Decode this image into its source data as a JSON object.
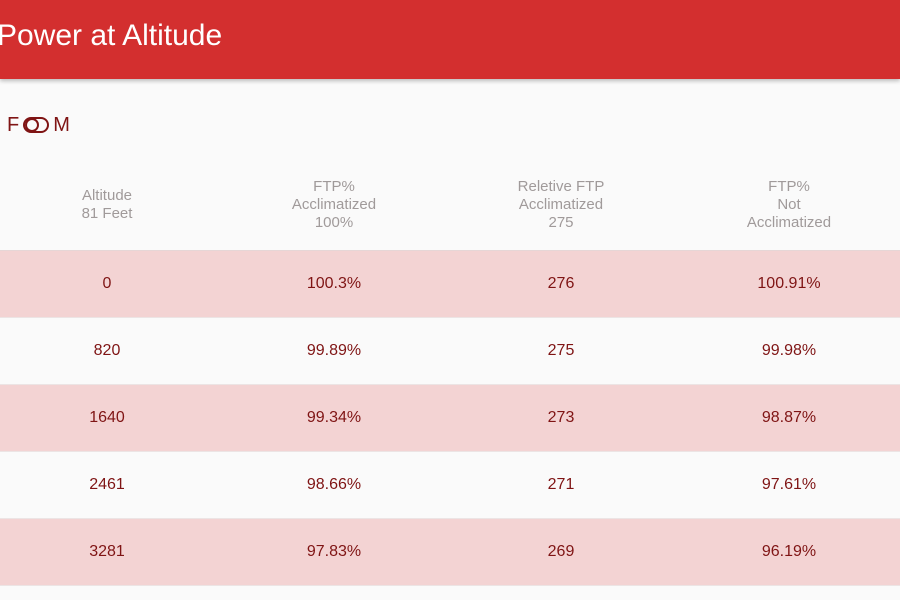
{
  "header": {
    "title": "Power at Altitude"
  },
  "units_toggle": {
    "left_label": "F",
    "right_label": "M"
  },
  "table": {
    "columns": [
      {
        "lines": [
          "Altitude",
          "81 Feet"
        ]
      },
      {
        "lines": [
          "FTP%",
          "Acclimatized",
          "100%"
        ]
      },
      {
        "lines": [
          "Reletive FTP",
          "Acclimatized",
          "275"
        ]
      },
      {
        "lines": [
          "FTP%",
          "Not",
          "Acclimatized"
        ]
      }
    ],
    "rows": [
      {
        "cells": [
          "0",
          "100.3%",
          "276",
          "100.91%"
        ]
      },
      {
        "cells": [
          "820",
          "99.89%",
          "275",
          "99.98%"
        ]
      },
      {
        "cells": [
          "1640",
          "99.34%",
          "273",
          "98.87%"
        ]
      },
      {
        "cells": [
          "2461",
          "98.66%",
          "271",
          "97.61%"
        ]
      },
      {
        "cells": [
          "3281",
          "97.83%",
          "269",
          "96.19%"
        ]
      }
    ]
  },
  "colors": {
    "primary": "#d32f2f",
    "row_shade": "#f3d3d3",
    "cell_text": "#7f1414",
    "header_text": "#a09a9a"
  }
}
